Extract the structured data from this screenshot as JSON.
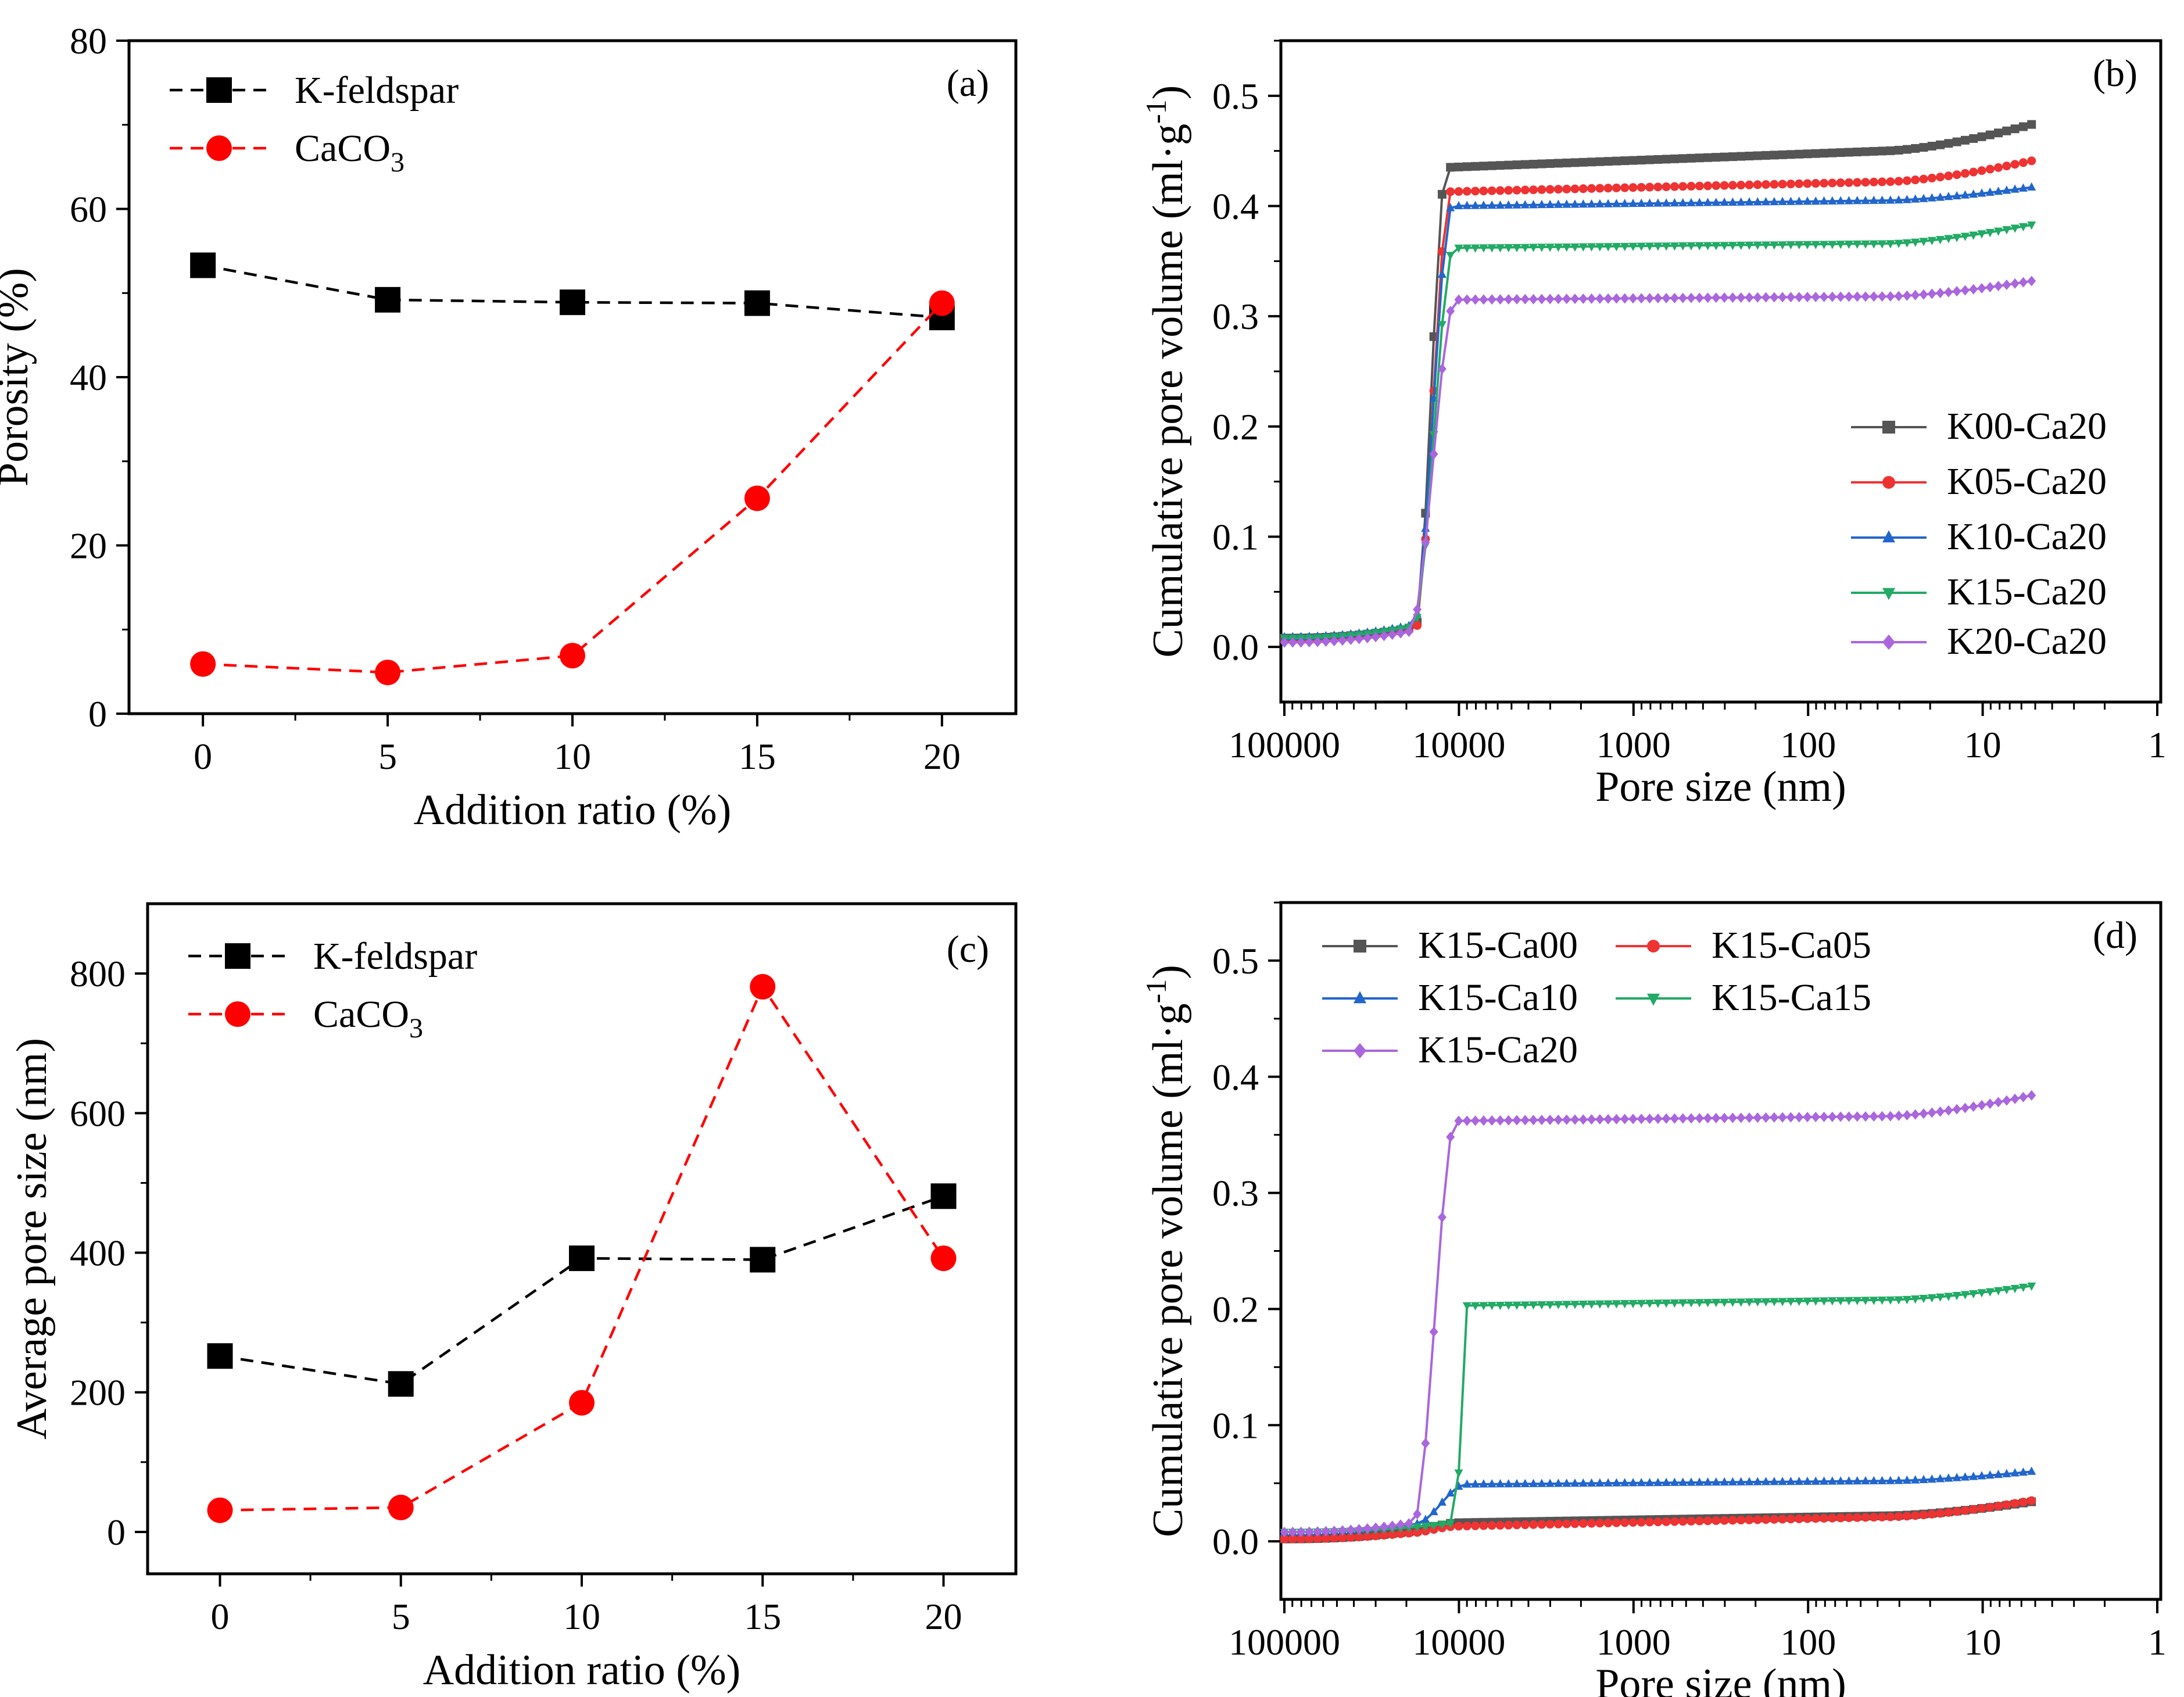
{
  "chart_data": [
    {
      "panel": "a",
      "type": "line",
      "panel_label": "(a)",
      "xlabel": "Addition ratio (%)",
      "ylabel": "Porosity (%)",
      "x": [
        0,
        5,
        10,
        15,
        20
      ],
      "xticks": [
        "0",
        "5",
        "10",
        "15",
        "20"
      ],
      "xlim": [
        -2,
        22
      ],
      "ylim": [
        0,
        80
      ],
      "yticks": [
        "0",
        "20",
        "40",
        "60",
        "80"
      ],
      "series": [
        {
          "name": "K-feldspar",
          "label_main": "K-feldspar",
          "label_sub": "",
          "color": "#000000",
          "marker": "square",
          "values": [
            53.3,
            49.2,
            48.9,
            48.8,
            47.1
          ]
        },
        {
          "name": "CaCO3",
          "label_main": "CaCO",
          "label_sub": "3",
          "color": "#ff0000",
          "marker": "circle",
          "values": [
            5.9,
            4.9,
            6.9,
            25.6,
            48.8
          ]
        }
      ]
    },
    {
      "panel": "b",
      "type": "line",
      "panel_label": "(b)",
      "xlabel": "Pore size (nm)",
      "ylabel_main": "Cumulative pore volume (ml·g",
      "ylabel_sup": "-1",
      "ylabel_end": ")",
      "xscale": "log-reversed",
      "xticks": [
        "100000",
        "10000",
        "1000",
        "100",
        "10",
        "1"
      ],
      "yticks": [
        "0.0",
        "0.1",
        "0.2",
        "0.3",
        "0.4",
        "0.5"
      ],
      "ylim": [
        -0.05,
        0.55
      ],
      "legend_position": "right-middle",
      "series": [
        {
          "name": "K00-Ca20",
          "color": "#555555",
          "marker": "square",
          "v_start": 0.008,
          "v_pre": 0.018,
          "v_plateau": 0.435,
          "v_mid": 0.45,
          "v_end": 0.474
        },
        {
          "name": "K05-Ca20",
          "color": "#ee3333",
          "marker": "circle",
          "v_start": 0.007,
          "v_pre": 0.016,
          "v_plateau": 0.413,
          "v_mid": 0.422,
          "v_end": 0.441
        },
        {
          "name": "K10-Ca20",
          "color": "#2266cc",
          "marker": "triangle-up",
          "v_start": 0.009,
          "v_pre": 0.02,
          "v_plateau": 0.4,
          "v_mid": 0.405,
          "v_end": 0.417
        },
        {
          "name": "K15-Ca20",
          "color": "#22aa66",
          "marker": "triangle-down",
          "v_start": 0.008,
          "v_pre": 0.019,
          "v_plateau": 0.362,
          "v_mid": 0.366,
          "v_end": 0.383
        },
        {
          "name": "K20-Ca20",
          "color": "#aa66dd",
          "marker": "diamond",
          "v_start": 0.004,
          "v_pre": 0.014,
          "v_plateau": 0.315,
          "v_mid": 0.318,
          "v_end": 0.332
        }
      ]
    },
    {
      "panel": "c",
      "type": "line",
      "panel_label": "(c)",
      "xlabel": "Addition ratio (%)",
      "ylabel": "Average pore size (nm)",
      "x": [
        0,
        5,
        10,
        15,
        20
      ],
      "xticks": [
        "0",
        "5",
        "10",
        "15",
        "20"
      ],
      "xlim": [
        -2,
        22
      ],
      "ylim": [
        -60,
        900
      ],
      "yticks": [
        "0",
        "200",
        "400",
        "600",
        "800"
      ],
      "series": [
        {
          "name": "K-feldspar",
          "label_main": "K-feldspar",
          "label_sub": "",
          "color": "#000000",
          "marker": "square",
          "values": [
            252,
            212,
            392,
            390,
            481
          ]
        },
        {
          "name": "CaCO3",
          "label_main": "CaCO",
          "label_sub": "3",
          "color": "#ff0000",
          "marker": "circle",
          "values": [
            31,
            35,
            185,
            781,
            392
          ]
        }
      ]
    },
    {
      "panel": "d",
      "type": "line",
      "panel_label": "(d)",
      "xlabel": "Pore size (nm)",
      "ylabel_main": "Cumulative pore volume (ml·g",
      "ylabel_sup": "-1",
      "ylabel_end": ")",
      "xscale": "log-reversed",
      "xticks": [
        "100000",
        "10000",
        "1000",
        "100",
        "10",
        "1"
      ],
      "yticks": [
        "0.0",
        "0.1",
        "0.2",
        "0.3",
        "0.4",
        "0.5"
      ],
      "ylim": [
        -0.05,
        0.55
      ],
      "legend_position": "top-left",
      "series": [
        {
          "name": "K15-Ca00",
          "color": "#555555",
          "marker": "square",
          "v_start": 0.002,
          "v_pre": 0.008,
          "v_plateau": 0.016,
          "v_mid": 0.022,
          "v_end": 0.034
        },
        {
          "name": "K15-Ca05",
          "color": "#ee3333",
          "marker": "circle",
          "v_start": 0.002,
          "v_pre": 0.007,
          "v_plateau": 0.013,
          "v_mid": 0.021,
          "v_end": 0.035
        },
        {
          "name": "K15-Ca10",
          "color": "#2266cc",
          "marker": "triangle-up",
          "v_start": 0.008,
          "v_pre": 0.015,
          "v_plateau": 0.049,
          "v_mid": 0.052,
          "v_end": 0.06
        },
        {
          "name": "K15-Ca15",
          "color": "#22aa66",
          "marker": "triangle-down",
          "v_start": 0.008,
          "v_pre": 0.016,
          "v_plateau": 0.203,
          "v_mid": 0.208,
          "v_end": 0.22
        },
        {
          "name": "K15-Ca20",
          "color": "#aa66dd",
          "marker": "diamond",
          "v_start": 0.008,
          "v_pre": 0.016,
          "v_plateau": 0.362,
          "v_mid": 0.366,
          "v_end": 0.384
        }
      ]
    }
  ]
}
